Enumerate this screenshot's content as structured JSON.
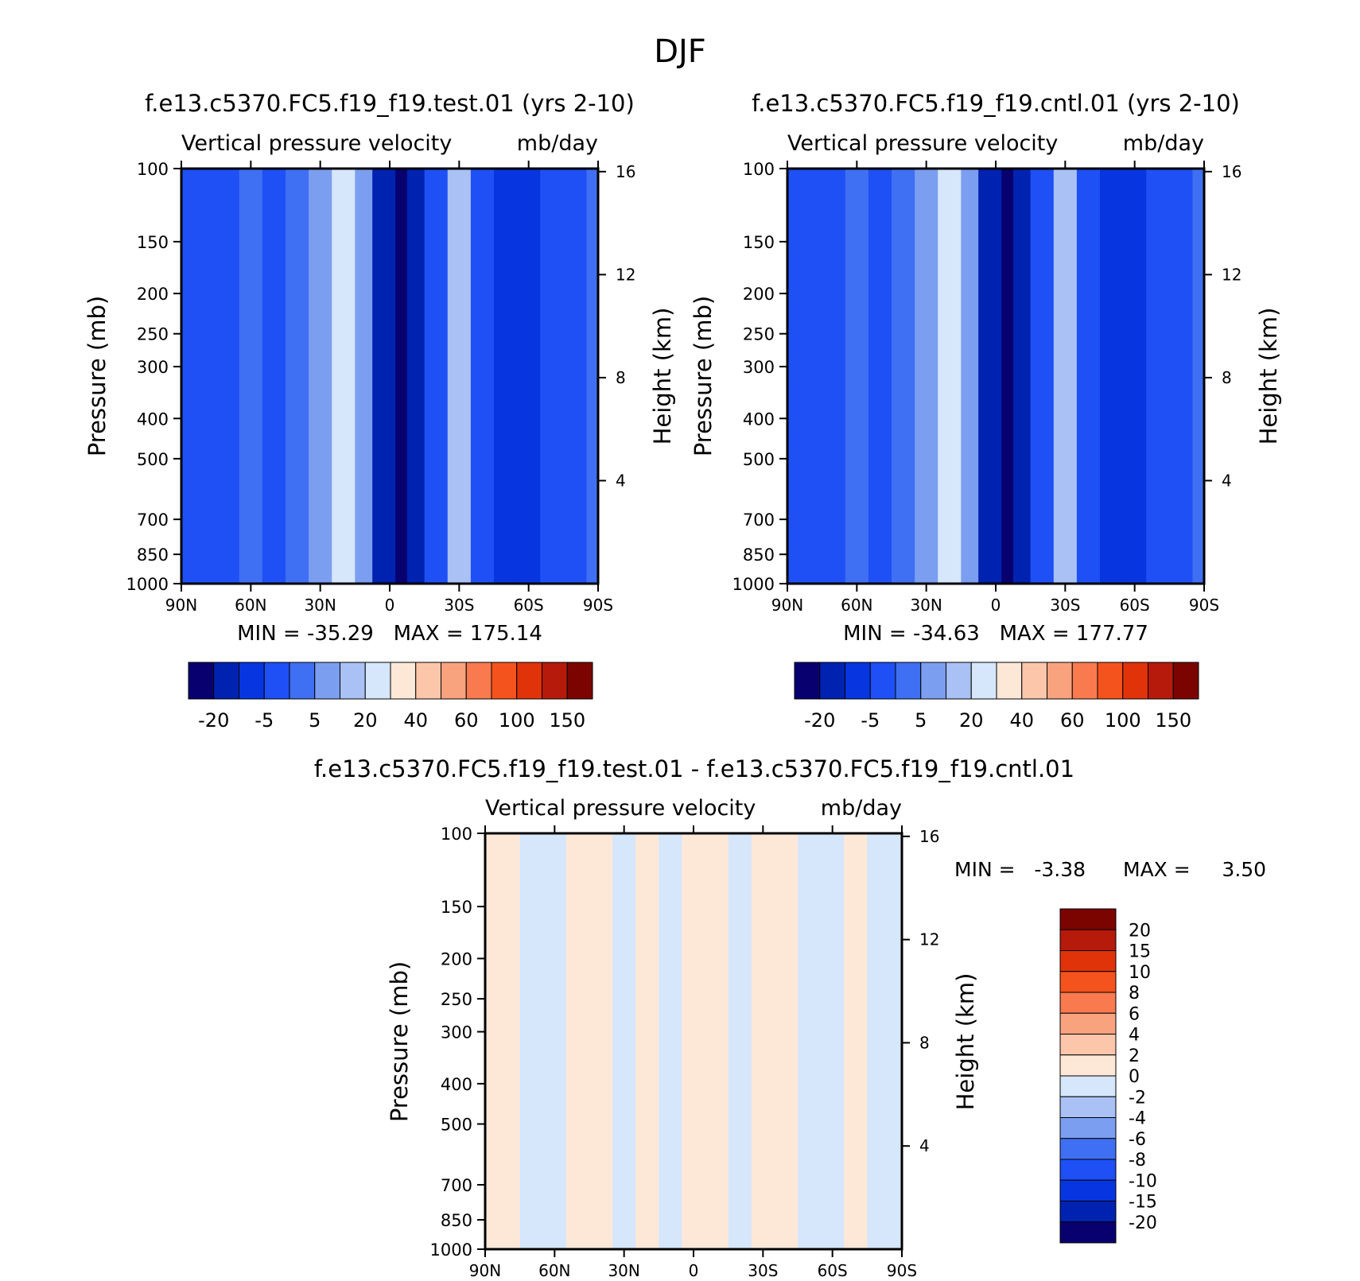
{
  "figure_title": "DJF",
  "colors": {
    "full_palette": [
      "#08006f",
      "#0022b0",
      "#0736e0",
      "#1e50f5",
      "#3f6ff2",
      "#7c9ef0",
      "#a9c1f5",
      "#d6e6fb",
      "#fde8d8",
      "#fbc6aa",
      "#f9a27e",
      "#f87a4e",
      "#f5531e",
      "#e0330a",
      "#b51a0b",
      "#7c0400"
    ],
    "diff_palette": [
      "#08006f",
      "#0022b0",
      "#0736e0",
      "#1e50f5",
      "#3f6ff2",
      "#7c9ef0",
      "#a9c1f5",
      "#d6e6fb",
      "#fde8d8",
      "#fbc6aa",
      "#f9a27e",
      "#f87a4e",
      "#f5531e",
      "#e0330a",
      "#b51a0b",
      "#7c0400"
    ]
  },
  "chart_data": [
    {
      "type": "heatmap",
      "id": "test",
      "title": "f.e13.c5370.FC5.f19_f19.test.01 (yrs 2-10)",
      "subtitle_left": "Vertical pressure velocity",
      "subtitle_right": "mb/day",
      "xlabel": "",
      "ylabel": "Pressure (mb)",
      "y2label": "Height (km)",
      "x_ticks": [
        "90N",
        "60N",
        "30N",
        "0",
        "30S",
        "60S",
        "90S"
      ],
      "y_ticks": [
        100,
        150,
        200,
        250,
        300,
        400,
        500,
        700,
        850,
        1000
      ],
      "y2_ticks": [
        16,
        12,
        8,
        4
      ],
      "ylim": [
        100,
        1000
      ],
      "stats": "MIN = -35.29   MAX = 175.14",
      "colorbar_labels": [
        "-20",
        "-5",
        "5",
        "20",
        "40",
        "60",
        "100",
        "150"
      ],
      "columns": [
        {
          "lat": 90,
          "level": 3
        },
        {
          "lat": 80,
          "level": 3
        },
        {
          "lat": 70,
          "level": 3
        },
        {
          "lat": 60,
          "level": 4
        },
        {
          "lat": 50,
          "level": 3
        },
        {
          "lat": 40,
          "level": 4
        },
        {
          "lat": 30,
          "level": 5
        },
        {
          "lat": 20,
          "level": 7
        },
        {
          "lat": 10,
          "level": 5
        },
        {
          "lat": 5,
          "level": 1
        },
        {
          "lat": 0,
          "level": 1
        },
        {
          "lat": -5,
          "level": 0
        },
        {
          "lat": -10,
          "level": 1
        },
        {
          "lat": -20,
          "level": 3
        },
        {
          "lat": -30,
          "level": 6
        },
        {
          "lat": -40,
          "level": 3
        },
        {
          "lat": -50,
          "level": 2
        },
        {
          "lat": -60,
          "level": 2
        },
        {
          "lat": -70,
          "level": 3
        },
        {
          "lat": -80,
          "level": 3
        },
        {
          "lat": -90,
          "level": 4
        }
      ]
    },
    {
      "type": "heatmap",
      "id": "cntl",
      "title": "f.e13.c5370.FC5.f19_f19.cntl.01 (yrs 2-10)",
      "subtitle_left": "Vertical pressure velocity",
      "subtitle_right": "mb/day",
      "xlabel": "",
      "ylabel": "Pressure (mb)",
      "y2label": "Height (km)",
      "x_ticks": [
        "90N",
        "60N",
        "30N",
        "0",
        "30S",
        "60S",
        "90S"
      ],
      "y_ticks": [
        100,
        150,
        200,
        250,
        300,
        400,
        500,
        700,
        850,
        1000
      ],
      "y2_ticks": [
        16,
        12,
        8,
        4
      ],
      "ylim": [
        100,
        1000
      ],
      "stats": "MIN = -34.63   MAX = 177.77",
      "colorbar_labels": [
        "-20",
        "-5",
        "5",
        "20",
        "40",
        "60",
        "100",
        "150"
      ],
      "columns": [
        {
          "lat": 90,
          "level": 3
        },
        {
          "lat": 80,
          "level": 3
        },
        {
          "lat": 70,
          "level": 3
        },
        {
          "lat": 60,
          "level": 4
        },
        {
          "lat": 50,
          "level": 3
        },
        {
          "lat": 40,
          "level": 4
        },
        {
          "lat": 30,
          "level": 5
        },
        {
          "lat": 20,
          "level": 7
        },
        {
          "lat": 10,
          "level": 5
        },
        {
          "lat": 5,
          "level": 1
        },
        {
          "lat": 0,
          "level": 1
        },
        {
          "lat": -5,
          "level": 0
        },
        {
          "lat": -10,
          "level": 1
        },
        {
          "lat": -20,
          "level": 3
        },
        {
          "lat": -30,
          "level": 6
        },
        {
          "lat": -40,
          "level": 3
        },
        {
          "lat": -50,
          "level": 2
        },
        {
          "lat": -60,
          "level": 2
        },
        {
          "lat": -70,
          "level": 3
        },
        {
          "lat": -80,
          "level": 3
        },
        {
          "lat": -90,
          "level": 4
        }
      ]
    },
    {
      "type": "heatmap",
      "id": "diff",
      "title": "f.e13.c5370.FC5.f19_f19.test.01 - f.e13.c5370.FC5.f19_f19.cntl.01",
      "subtitle_left": "Vertical pressure velocity",
      "subtitle_right": "mb/day",
      "xlabel": "",
      "ylabel": "Pressure (mb)",
      "y2label": "Height (km)",
      "x_ticks": [
        "90N",
        "60N",
        "30N",
        "0",
        "30S",
        "60S",
        "90S"
      ],
      "y_ticks": [
        100,
        150,
        200,
        250,
        300,
        400,
        500,
        700,
        850,
        1000
      ],
      "y2_ticks": [
        16,
        12,
        8,
        4
      ],
      "ylim": [
        100,
        1000
      ],
      "stats_min": "MIN =   -3.38",
      "stats_max": "MAX =     3.50",
      "colorbar_labels": [
        "20",
        "15",
        "10",
        "8",
        "6",
        "4",
        "2",
        "0",
        "-2",
        "-4",
        "-6",
        "-8",
        "-10",
        "-15",
        "-20"
      ],
      "columns": [
        {
          "lat": 90,
          "level": 8
        },
        {
          "lat": 80,
          "level": 8
        },
        {
          "lat": 70,
          "level": 7
        },
        {
          "lat": 60,
          "level": 7
        },
        {
          "lat": 50,
          "level": 8
        },
        {
          "lat": 40,
          "level": 8
        },
        {
          "lat": 30,
          "level": 7
        },
        {
          "lat": 20,
          "level": 8
        },
        {
          "lat": 10,
          "level": 7
        },
        {
          "lat": 0,
          "level": 8
        },
        {
          "lat": -10,
          "level": 8
        },
        {
          "lat": -20,
          "level": 7
        },
        {
          "lat": -30,
          "level": 8
        },
        {
          "lat": -40,
          "level": 8
        },
        {
          "lat": -50,
          "level": 7
        },
        {
          "lat": -60,
          "level": 7
        },
        {
          "lat": -70,
          "level": 8
        },
        {
          "lat": -80,
          "level": 7
        },
        {
          "lat": -90,
          "level": 7
        }
      ]
    }
  ]
}
